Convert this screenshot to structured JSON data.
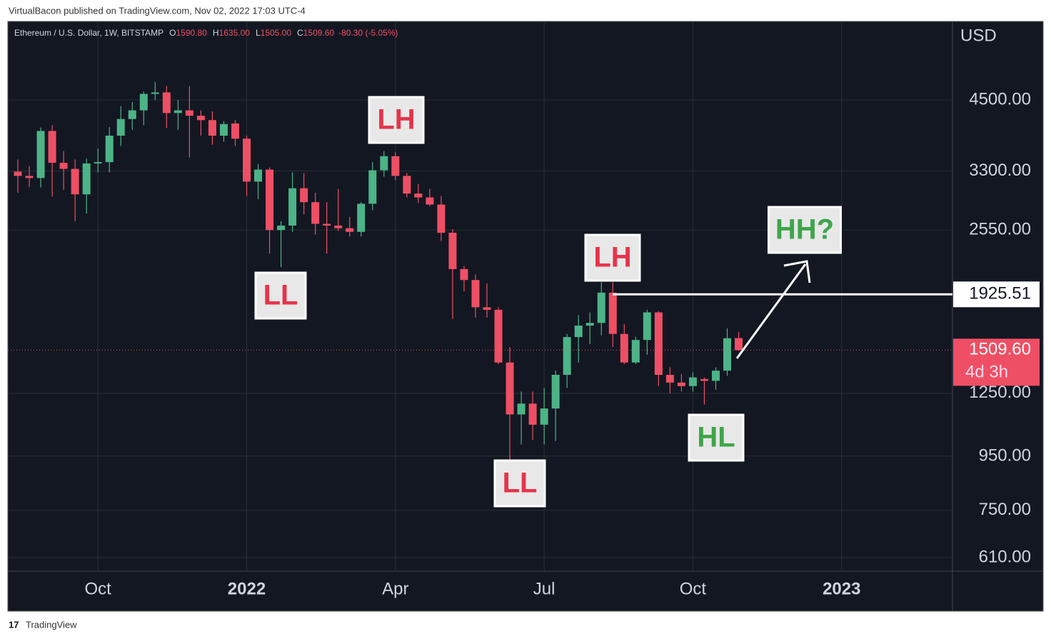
{
  "publisher": "VirtualBacon published on TradingView.com, Nov 02, 2022 17:03 UTC-4",
  "footer": "TradingView",
  "chart_data": {
    "type": "candlestick",
    "symbol": "Ethereum / U.S. Dollar, 1W, BITSTAMP",
    "header_values": [
      {
        "label": "O",
        "text": "1590.80"
      },
      {
        "label": "H",
        "text": "1635.00"
      },
      {
        "label": "L",
        "text": "1505.00"
      },
      {
        "label": "C",
        "text": "1509.60"
      },
      {
        "text": "-80.30 (-5.05%)"
      }
    ],
    "currency": "USD",
    "categories": [
      null,
      null,
      null,
      null,
      null,
      null,
      null,
      "Oct",
      null,
      null,
      null,
      null,
      null,
      null,
      null,
      null,
      null,
      null,
      null,
      null,
      "2022",
      null,
      null,
      null,
      null,
      null,
      null,
      null,
      null,
      null,
      null,
      null,
      null,
      "Apr",
      null,
      null,
      null,
      null,
      null,
      null,
      null,
      null,
      null,
      null,
      null,
      null,
      "Jul",
      null,
      null,
      null,
      null,
      null,
      null,
      null,
      null,
      null,
      null,
      null,
      null,
      "Oct",
      null,
      null,
      null,
      null,
      null,
      null,
      null,
      null,
      null,
      null,
      null,
      null,
      "2023",
      null,
      null,
      null,
      null,
      null,
      null,
      null,
      null,
      null
    ],
    "open": [
      3290,
      3230,
      3200,
      3930,
      3420,
      3330,
      2980,
      3410,
      3430,
      3850,
      4140,
      4300,
      4620,
      4650,
      4250,
      4300,
      4200,
      4120,
      3850,
      4060,
      3800,
      3150,
      3320,
      2550,
      2600,
      3060,
      2880,
      2620,
      2600,
      2570,
      2530,
      2860,
      3310,
      3520,
      3230,
      2990,
      2940,
      2850,
      2520,
      2150,
      2050,
      1820,
      1800,
      1430,
      1140,
      1195,
      1090,
      1170,
      1355,
      1598,
      1680,
      1700,
      1940,
      1620,
      1430,
      1578,
      1780,
      1355,
      1310,
      1290,
      1330,
      1320,
      1380,
      1590.8,
      null,
      null,
      null,
      null,
      null,
      null,
      null,
      null,
      null,
      null,
      null,
      null,
      null,
      null,
      null,
      null,
      null,
      null
    ],
    "high": [
      3470,
      3370,
      3990,
      4030,
      3600,
      3470,
      3480,
      3640,
      4000,
      4380,
      4460,
      4670,
      4870,
      4780,
      4500,
      4780,
      4300,
      4280,
      4100,
      4120,
      3850,
      3400,
      3350,
      2650,
      3280,
      3270,
      3000,
      2880,
      3050,
      2700,
      2880,
      3430,
      3600,
      3580,
      3270,
      3120,
      3050,
      2960,
      2560,
      2180,
      2100,
      2020,
      1820,
      1530,
      1260,
      1260,
      1280,
      1380,
      1620,
      1760,
      1780,
      2030,
      2030,
      1690,
      1600,
      1800,
      1790,
      1400,
      1360,
      1370,
      1340,
      1400,
      1660,
      1635,
      null,
      null,
      null,
      null,
      null,
      null,
      null,
      null,
      null,
      null,
      null,
      null,
      null,
      null,
      null,
      null,
      null,
      null
    ],
    "low": [
      3000,
      3080,
      3070,
      2950,
      3040,
      2650,
      2740,
      3280,
      3280,
      3680,
      3950,
      4030,
      4500,
      3980,
      3950,
      3500,
      3850,
      3700,
      3750,
      3680,
      2960,
      2920,
      2300,
      2170,
      2530,
      2730,
      2500,
      2300,
      2540,
      2480,
      2480,
      2780,
      3220,
      3170,
      2940,
      2870,
      2830,
      2430,
      1730,
      1950,
      1740,
      1740,
      1420,
      880,
      1000,
      1020,
      1000,
      1015,
      1280,
      1430,
      1550,
      1610,
      1530,
      1420,
      1420,
      1480,
      1290,
      1250,
      1260,
      1260,
      1190,
      1270,
      1350,
      1505,
      null,
      null,
      null,
      null,
      null,
      null,
      null,
      null,
      null,
      null,
      null,
      null,
      null,
      null,
      null,
      null,
      null,
      null
    ],
    "close": [
      3230,
      3200,
      3930,
      3420,
      3330,
      2980,
      3410,
      3430,
      3850,
      4140,
      4300,
      4620,
      4650,
      4250,
      4300,
      4200,
      4120,
      3850,
      4050,
      3800,
      3150,
      3320,
      2550,
      2600,
      3060,
      2880,
      2620,
      2600,
      2570,
      2530,
      2860,
      3310,
      3520,
      3230,
      2990,
      2940,
      2850,
      2520,
      2150,
      2050,
      1820,
      1800,
      1430,
      1140,
      1195,
      1090,
      1170,
      1355,
      1598,
      1680,
      1700,
      1940,
      1620,
      1430,
      1578,
      1780,
      1355,
      1310,
      1290,
      1340,
      1320,
      1380,
      1590,
      1509.6,
      null,
      null,
      null,
      null,
      null,
      null,
      null,
      null,
      null,
      null,
      null,
      null,
      null,
      null,
      null,
      null,
      null,
      null
    ],
    "up_color": "#4cb487",
    "down_color": "#ee4f64",
    "log_scale": true,
    "grid": true,
    "ylim": [
      575,
      6340
    ],
    "yticks": [
      {
        "value": 4500,
        "label": "4500.00"
      },
      {
        "value": 3300,
        "label": "3300.00"
      },
      {
        "value": 2550,
        "label": "2550.00"
      },
      {
        "value": 1250,
        "label": "1250.00"
      },
      {
        "value": 950,
        "label": "950.00"
      },
      {
        "value": 750,
        "label": "750.00"
      },
      {
        "value": 610,
        "label": "610.00"
      }
    ],
    "level": {
      "value": 1925.51
    },
    "last_price": {
      "value": 1509.6,
      "label": "1509.60"
    },
    "countdown": "4d 3h",
    "annotations": [
      {
        "text": "LH",
        "color": "#e5344a"
      },
      {
        "text": "LL",
        "color": "#e5344a"
      },
      {
        "text": "LH",
        "color": "#e5344a"
      },
      {
        "text": "LL",
        "color": "#e5344a"
      },
      {
        "text": "HL",
        "color": "#3fa54a"
      },
      {
        "text": "HH?",
        "color": "#3fa54a"
      }
    ]
  }
}
